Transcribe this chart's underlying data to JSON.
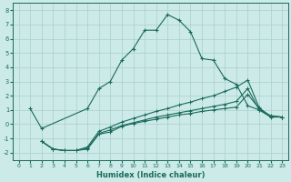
{
  "xlabel": "Humidex (Indice chaleur)",
  "bg_color": "#cceae7",
  "grid_color": "#aacfcc",
  "line_color": "#1a6b5a",
  "xlim": [
    -0.5,
    23.5
  ],
  "ylim": [
    -2.5,
    8.5
  ],
  "xticks": [
    0,
    1,
    2,
    3,
    4,
    5,
    6,
    7,
    8,
    9,
    10,
    11,
    12,
    13,
    14,
    15,
    16,
    17,
    18,
    19,
    20,
    21,
    22,
    23
  ],
  "yticks": [
    -2,
    -1,
    0,
    1,
    2,
    3,
    4,
    5,
    6,
    7,
    8
  ],
  "line1_x": [
    1,
    2,
    6,
    7,
    8,
    9,
    10,
    11,
    12,
    13,
    14,
    15,
    16,
    17,
    18,
    19,
    20,
    21,
    22,
    23
  ],
  "line1_y": [
    1.1,
    -0.3,
    1.1,
    2.5,
    3.0,
    4.5,
    5.3,
    6.6,
    6.6,
    7.7,
    7.3,
    6.5,
    4.6,
    4.5,
    3.2,
    2.8,
    1.3,
    1.0,
    0.6,
    0.5
  ],
  "line2_x": [
    2,
    3,
    4,
    5,
    6,
    7,
    8,
    9,
    10,
    11,
    12,
    13,
    14,
    15,
    16,
    17,
    18,
    19,
    20,
    21,
    22,
    23
  ],
  "line2_y": [
    -1.2,
    -1.75,
    -1.85,
    -1.85,
    -1.75,
    -0.7,
    -0.55,
    -0.15,
    0.05,
    0.2,
    0.35,
    0.5,
    0.65,
    0.75,
    0.9,
    1.0,
    1.1,
    1.2,
    2.1,
    1.1,
    0.55,
    0.5
  ],
  "line3_x": [
    2,
    3,
    4,
    5,
    6,
    7,
    8,
    9,
    10,
    11,
    12,
    13,
    14,
    15,
    16,
    17,
    18,
    19,
    20,
    21,
    22,
    23
  ],
  "line3_y": [
    -1.2,
    -1.75,
    -1.85,
    -1.85,
    -1.7,
    -0.65,
    -0.4,
    -0.1,
    0.1,
    0.3,
    0.5,
    0.65,
    0.8,
    0.95,
    1.1,
    1.25,
    1.4,
    1.6,
    2.5,
    1.0,
    0.5,
    0.5
  ],
  "line4_x": [
    2,
    3,
    4,
    5,
    6,
    7,
    8,
    9,
    10,
    11,
    12,
    13,
    14,
    15,
    16,
    17,
    18,
    19,
    20,
    21,
    22,
    23
  ],
  "line4_y": [
    -1.2,
    -1.75,
    -1.85,
    -1.85,
    -1.6,
    -0.5,
    -0.2,
    0.15,
    0.4,
    0.65,
    0.9,
    1.1,
    1.35,
    1.55,
    1.8,
    2.0,
    2.3,
    2.6,
    3.1,
    1.15,
    0.55,
    0.5
  ]
}
